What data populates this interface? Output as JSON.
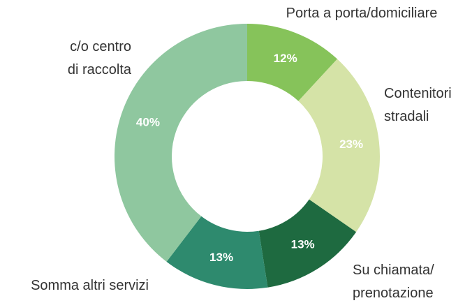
{
  "chart_data": {
    "type": "donut",
    "categories": [
      "Porta a porta/domiciliare",
      "Contenitori\nstradali",
      "Su chiamata/\nprenotazione",
      "Somma altri servizi",
      "c/o centro\ndi raccolta"
    ],
    "values": [
      12,
      23,
      13,
      13,
      40
    ],
    "value_labels": [
      "12%",
      "23%",
      "13%",
      "13%",
      "40%"
    ],
    "colors": [
      "#86c35a",
      "#d5e3a7",
      "#1e6a40",
      "#2e8a6e",
      "#8fc79f"
    ]
  }
}
